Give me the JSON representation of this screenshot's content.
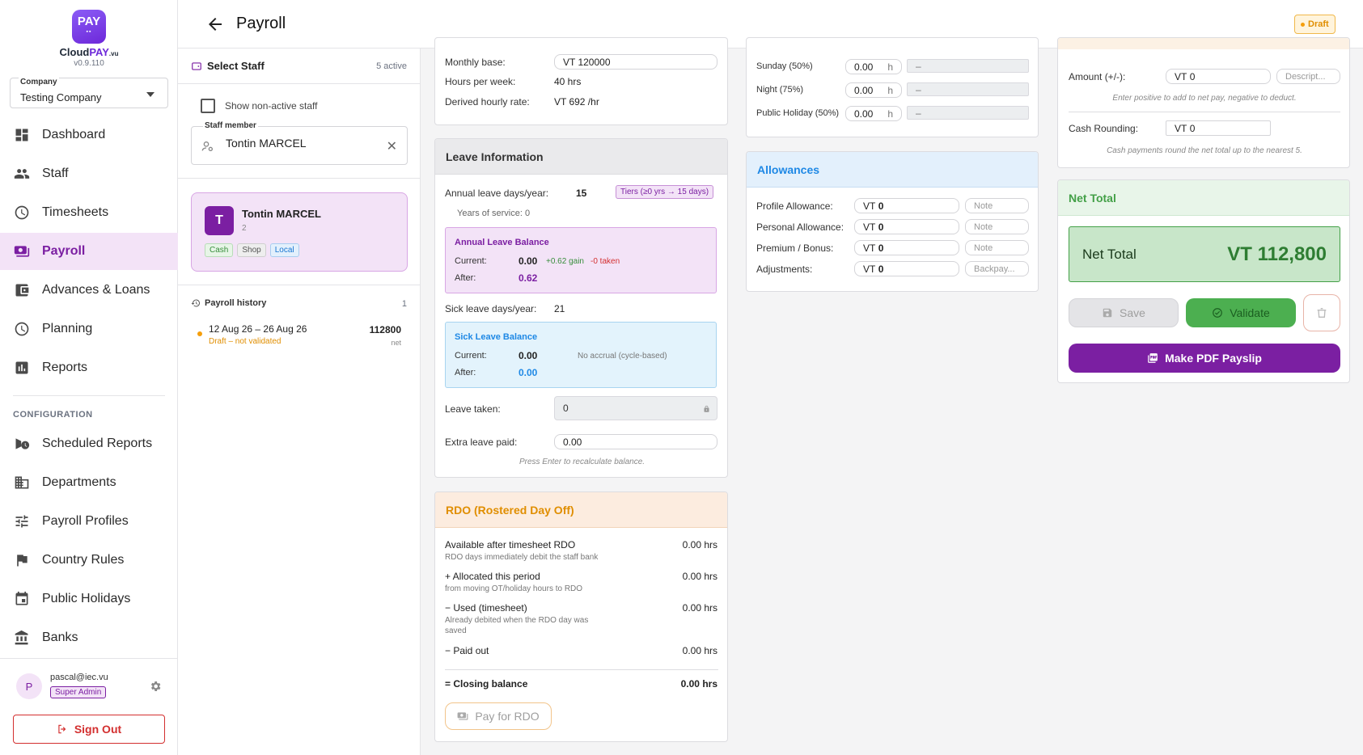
{
  "app": {
    "logo_text": "PAY",
    "name_part1": "Cloud",
    "name_part2": "PAY",
    "name_suffix": ".vu",
    "version": "v0.9.110"
  },
  "company": {
    "label": "Company",
    "value": "Testing Company"
  },
  "nav": {
    "items": [
      {
        "label": "Dashboard",
        "icon": "dashboard-icon"
      },
      {
        "label": "Staff",
        "icon": "people-icon"
      },
      {
        "label": "Timesheets",
        "icon": "clock-icon"
      },
      {
        "label": "Payroll",
        "icon": "payroll-icon",
        "active": true
      },
      {
        "label": "Advances & Loans",
        "icon": "wallet-icon"
      },
      {
        "label": "Planning",
        "icon": "clock-icon"
      },
      {
        "label": "Reports",
        "icon": "bar-chart-icon"
      }
    ],
    "section_label": "CONFIGURATION",
    "config_items": [
      {
        "label": "Scheduled Reports",
        "icon": "schedule-send-icon"
      },
      {
        "label": "Departments",
        "icon": "departments-icon"
      },
      {
        "label": "Payroll Profiles",
        "icon": "tune-icon"
      },
      {
        "label": "Country Rules",
        "icon": "flag-icon"
      },
      {
        "label": "Public Holidays",
        "icon": "calendar-icon"
      },
      {
        "label": "Banks",
        "icon": "bank-icon"
      }
    ]
  },
  "user": {
    "avatar": "P",
    "email": "pascal@iec.vu",
    "role": "Super Admin",
    "sign_out": "Sign Out"
  },
  "header": {
    "title": "Payroll",
    "status": "Draft"
  },
  "staff_panel": {
    "title": "Select Staff",
    "active_count": "5 active",
    "show_inactive": "Show non-active staff",
    "field_label": "Staff member",
    "field_value": "Tontin MARCEL",
    "card": {
      "initial": "T",
      "name": "Tontin MARCEL",
      "id": "2",
      "tags": [
        "Cash",
        "Shop",
        "Local"
      ]
    },
    "history_title": "Payroll history",
    "history_count": "1",
    "history": [
      {
        "dates": "12 Aug 26 – 26 Aug 26",
        "status": "Draft – not validated",
        "amount": "112800",
        "unit": "net"
      }
    ]
  },
  "base": {
    "monthly_base_label": "Monthly base:",
    "monthly_base_value": "VT 120000",
    "hours_label": "Hours per week:",
    "hours_value": "40 hrs",
    "rate_label": "Derived hourly rate:",
    "rate_value": "VT 692 /hr"
  },
  "leave": {
    "title": "Leave Information",
    "annual_label": "Annual leave days/year:",
    "annual_value": "15",
    "tiers": "Tiers (≥0 yrs → 15 days)",
    "service": "Years of service: 0",
    "annual_balance": {
      "title": "Annual Leave Balance",
      "current_label": "Current:",
      "current": "0.00",
      "gain": "+0.62 gain",
      "taken": "-0 taken",
      "after_label": "After:",
      "after": "0.62"
    },
    "sick_label": "Sick leave days/year:",
    "sick_value": "21",
    "sick_balance": {
      "title": "Sick Leave Balance",
      "current_label": "Current:",
      "current": "0.00",
      "note": "No accrual (cycle-based)",
      "after_label": "After:",
      "after": "0.00"
    },
    "taken_label": "Leave taken:",
    "taken_value": "0",
    "extra_label": "Extra leave paid:",
    "extra_value": "0.00",
    "hint": "Press Enter to recalculate balance."
  },
  "rdo": {
    "title": "RDO (Rostered Day Off)",
    "rows": [
      {
        "label": "Available after timesheet RDO",
        "sub": "RDO days immediately debit the staff bank",
        "value": "0.00 hrs"
      },
      {
        "label": "+ Allocated this period",
        "sub": "from moving OT/holiday hours to RDO",
        "value": "0.00 hrs"
      },
      {
        "label": "− Used (timesheet)",
        "sub": "Already debited when the RDO day was saved",
        "value": "0.00 hrs"
      },
      {
        "label": "− Paid out",
        "sub": "",
        "value": "0.00 hrs"
      }
    ],
    "closing_label": "= Closing balance",
    "closing_value": "0.00 hrs",
    "pay_button": "Pay for RDO"
  },
  "overtime": {
    "rows": [
      {
        "label": "Sunday (50%)",
        "hours": "0.00",
        "unit": "h",
        "amount": "–"
      },
      {
        "label": "Night (75%)",
        "hours": "0.00",
        "unit": "h",
        "amount": "–"
      },
      {
        "label": "Public Holiday (50%)",
        "hours": "0.00",
        "unit": "h",
        "amount": "–"
      }
    ]
  },
  "allowances": {
    "title": "Allowances",
    "rows": [
      {
        "label": "Profile Allowance:",
        "prefix": "VT",
        "value": "0",
        "note": "Note"
      },
      {
        "label": "Personal Allowance:",
        "prefix": "VT",
        "value": "0",
        "note": "Note"
      },
      {
        "label": "Premium / Bonus:",
        "prefix": "VT",
        "value": "0",
        "note": "Note"
      },
      {
        "label": "Adjustments:",
        "prefix": "VT",
        "value": "0",
        "note": "Backpay..."
      }
    ]
  },
  "adjust": {
    "amount_label": "Amount (+/-):",
    "amount_prefix": "VT",
    "amount_value": "0",
    "desc_placeholder": "Descript...",
    "amount_hint": "Enter positive to add to net pay, negative to deduct.",
    "rounding_label": "Cash Rounding:",
    "rounding_prefix": "VT",
    "rounding_value": "0",
    "rounding_hint": "Cash payments round the net total up to the nearest 5."
  },
  "net": {
    "title": "Net Total",
    "label": "Net Total",
    "value": "VT 112,800",
    "save": "Save",
    "validate": "Validate",
    "pdf": "Make PDF Payslip"
  },
  "colors": {
    "accent": "#7b1fa2",
    "green": "#4caf50",
    "orange": "#f59e0b",
    "blue": "#1e88e5"
  }
}
